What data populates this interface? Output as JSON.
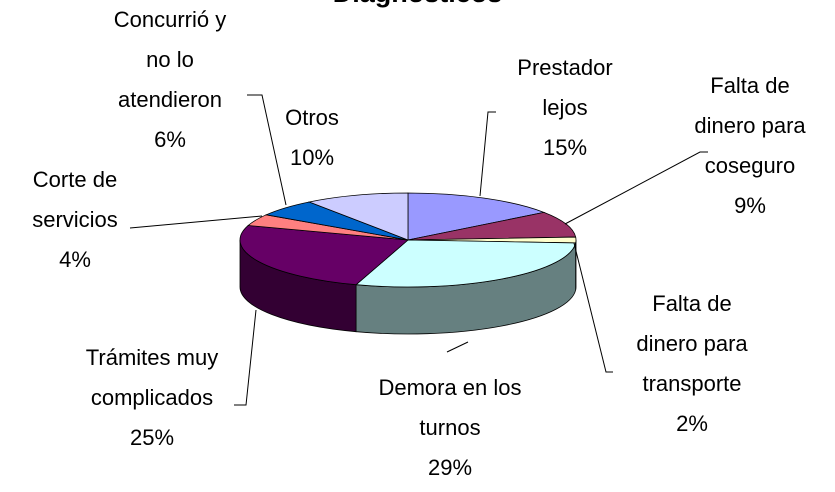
{
  "chart_data": {
    "type": "pie",
    "title": "Diagnósticos",
    "categories": [
      "Prestador lejos",
      "Falta de dinero para coseguro",
      "Falta de dinero para transporte",
      "Demora en los turnos",
      "Trámites muy complicados",
      "Corte de servicios",
      "Concurrió y no lo atendieron",
      "Otros"
    ],
    "values": [
      15,
      9,
      2,
      29,
      25,
      4,
      6,
      10
    ],
    "value_labels": [
      "15%",
      "9%",
      "2%",
      "29%",
      "25%",
      "4%",
      "6%",
      "10%"
    ],
    "colors": [
      "#9999ff",
      "#993366",
      "#ffffcc",
      "#ccffff",
      "#660066",
      "#ff8080",
      "#0066cc",
      "#ccccff"
    ]
  }
}
